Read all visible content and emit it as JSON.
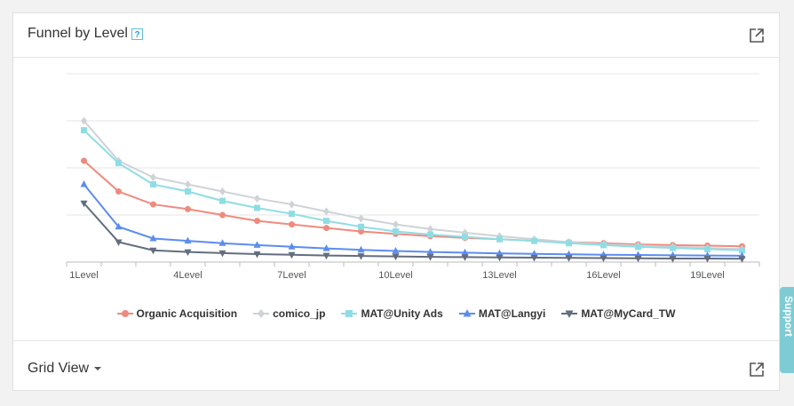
{
  "panel": {
    "title": "Funnel by Level",
    "help_glyph": "?",
    "external_link_icon": "external-link-icon"
  },
  "grid_view": {
    "label": "Grid View",
    "external_link_icon": "external-link-icon"
  },
  "support_tab": {
    "label": "Support"
  },
  "chart_data": {
    "type": "line",
    "x": [
      "1Level",
      "2Level",
      "3Level",
      "4Level",
      "5Level",
      "6Level",
      "7Level",
      "8Level",
      "9Level",
      "10Level",
      "11Level",
      "12Level",
      "13Level",
      "14Level",
      "15Level",
      "16Level",
      "17Level",
      "18Level",
      "19Level",
      "20Level"
    ],
    "x_tick_labels": [
      "1Level",
      "4Level",
      "7Level",
      "10Level",
      "13Level",
      "16Level",
      "19Level"
    ],
    "ylim": [
      0,
      8
    ],
    "grid": true,
    "legend_position": "bottom",
    "series": [
      {
        "name": "Organic Acquisition",
        "color": "#f08a7e",
        "marker": "circle",
        "values": [
          4.3,
          3.0,
          2.45,
          2.25,
          2.0,
          1.75,
          1.6,
          1.45,
          1.3,
          1.2,
          1.1,
          1.03,
          0.97,
          0.9,
          0.85,
          0.8,
          0.75,
          0.72,
          0.7,
          0.67
        ]
      },
      {
        "name": "comico_jp",
        "color": "#cfd2d6",
        "marker": "diamond",
        "values": [
          6.0,
          4.3,
          3.6,
          3.3,
          3.0,
          2.7,
          2.45,
          2.15,
          1.85,
          1.6,
          1.4,
          1.25,
          1.1,
          0.97,
          0.85,
          0.75,
          0.7,
          0.65,
          0.6,
          0.55
        ]
      },
      {
        "name": "MAT@Unity Ads",
        "color": "#8fdde4",
        "marker": "square",
        "values": [
          5.6,
          4.2,
          3.3,
          3.0,
          2.6,
          2.3,
          2.05,
          1.75,
          1.5,
          1.3,
          1.17,
          1.07,
          0.97,
          0.9,
          0.8,
          0.72,
          0.65,
          0.6,
          0.55,
          0.5
        ]
      },
      {
        "name": "MAT@Langyi",
        "color": "#5b8def",
        "marker": "triangle",
        "values": [
          3.3,
          1.5,
          1.0,
          0.9,
          0.8,
          0.72,
          0.65,
          0.58,
          0.52,
          0.47,
          0.43,
          0.4,
          0.37,
          0.35,
          0.33,
          0.31,
          0.3,
          0.29,
          0.28,
          0.27
        ]
      },
      {
        "name": "MAT@MyCard_TW",
        "color": "#636d7e",
        "marker": "triangle-down",
        "values": [
          2.5,
          0.85,
          0.5,
          0.43,
          0.38,
          0.34,
          0.31,
          0.28,
          0.26,
          0.24,
          0.22,
          0.21,
          0.2,
          0.19,
          0.18,
          0.17,
          0.16,
          0.15,
          0.15,
          0.14
        ]
      }
    ]
  }
}
